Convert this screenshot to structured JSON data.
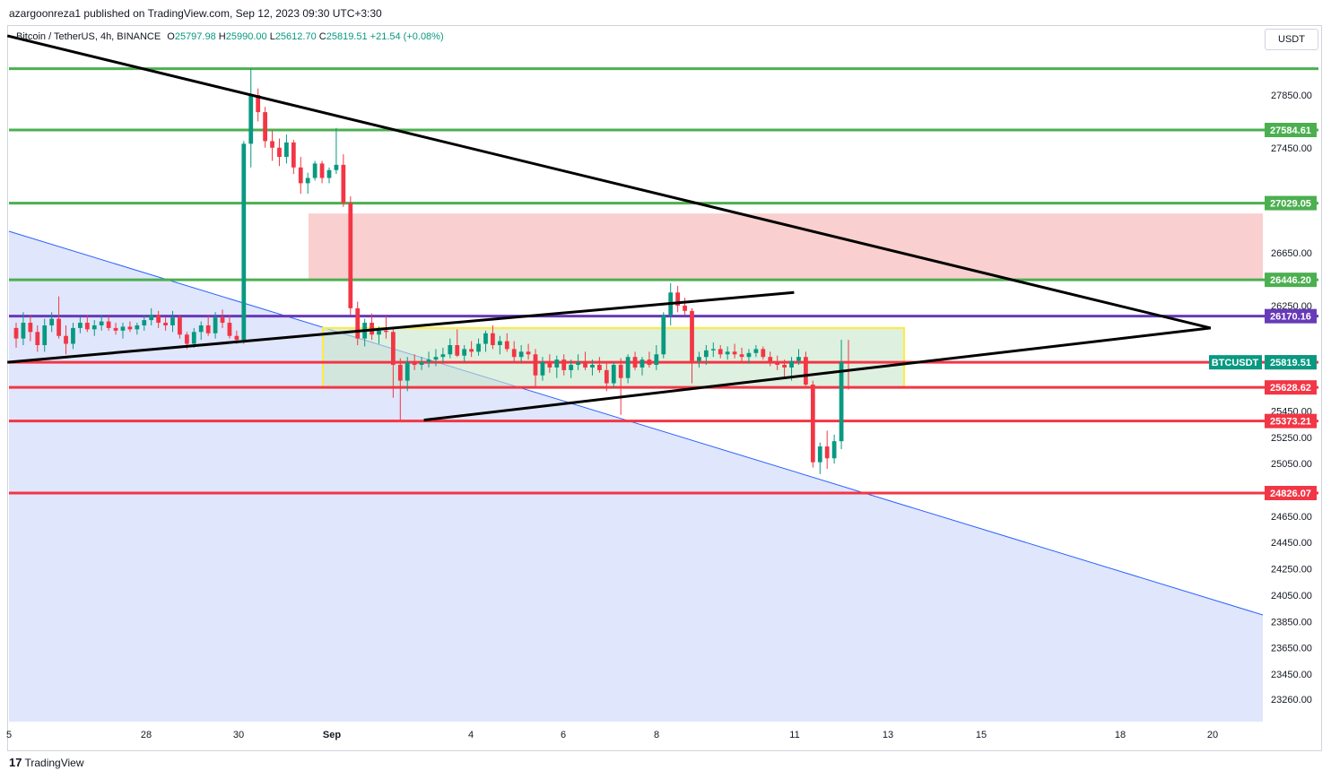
{
  "header": {
    "published": "azargoonreza1 published on TradingView.com, Sep 12, 2023 09:30 UTC+3:30"
  },
  "legend": {
    "symbol": "Bitcoin / TetherUS, 4h, BINANCE",
    "open_label": "O",
    "open": "25797.98",
    "high_label": "H",
    "high": "25990.00",
    "low_label": "L",
    "low": "25612.70",
    "close_label": "C",
    "close": "25819.51",
    "change": "+21.54 (+0.08%)"
  },
  "currency": "USDT",
  "brand": {
    "logo": "17",
    "name": "TradingView"
  },
  "colors": {
    "up": "#089981",
    "down": "#f23645",
    "support_line": "#f23645",
    "resistance_line": "#4caf50",
    "purple_line": "#673ab7",
    "zone_red": "#f8bbbb",
    "zone_green": "#c8e6c9",
    "zone_border": "#ffeb3b",
    "channel_fill": "#dde3fb",
    "channel_line": "#2962ff"
  },
  "chart_data": {
    "type": "candlestick",
    "symbol": "BTCUSDT",
    "timeframe": "4h",
    "y_axis": {
      "ylim": [
        23260,
        28250
      ],
      "ticks": [
        "27850.00",
        "27450.00",
        "26650.00",
        "26250.00",
        "25450.00",
        "25250.00",
        "25050.00",
        "24650.00",
        "24450.00",
        "24250.00",
        "24050.00",
        "23850.00",
        "23650.00",
        "23450.00",
        "23260.00"
      ]
    },
    "x_axis": {
      "ticks": [
        "5",
        "28",
        "30",
        "Sep",
        "4",
        "6",
        "8",
        "11",
        "13",
        "15",
        "18",
        "20"
      ]
    },
    "horizontal_levels": [
      {
        "price": 28050.0,
        "label": "",
        "color": "#4caf50"
      },
      {
        "price": 27584.61,
        "label": "27584.61",
        "color": "#4caf50"
      },
      {
        "price": 27029.05,
        "label": "27029.05",
        "color": "#4caf50"
      },
      {
        "price": 26446.2,
        "label": "26446.20",
        "color": "#4caf50"
      },
      {
        "price": 26170.16,
        "label": "26170.16",
        "color": "#673ab7"
      },
      {
        "price": 25819.58,
        "label": "25819.58",
        "color": "#f23645"
      },
      {
        "price": 25628.62,
        "label": "25628.62",
        "color": "#f23645"
      },
      {
        "price": 25373.21,
        "label": "25373.21",
        "color": "#f23645"
      },
      {
        "price": 24826.07,
        "label": "24826.07",
        "color": "#f23645"
      }
    ],
    "last_price": {
      "symbol_label": "BTCUSDT",
      "value": "25819.51"
    },
    "zones": [
      {
        "name": "supply-zone",
        "top": 26950,
        "bottom": 26450,
        "color": "#f8bbbb"
      },
      {
        "name": "range-box",
        "top": 26080,
        "bottom": 25630,
        "color": "#c8e6c9"
      }
    ],
    "candles": [
      [
        26080,
        26120,
        25930,
        26000
      ],
      [
        26000,
        26200,
        25950,
        26120
      ],
      [
        26120,
        26180,
        25980,
        26050
      ],
      [
        26050,
        26100,
        25900,
        25950
      ],
      [
        25950,
        26150,
        25900,
        26100
      ],
      [
        26100,
        26200,
        26050,
        26150
      ],
      [
        26150,
        26320,
        26000,
        26020
      ],
      [
        26020,
        26100,
        25880,
        25960
      ],
      [
        25960,
        26120,
        25920,
        26080
      ],
      [
        26080,
        26160,
        26040,
        26120
      ],
      [
        26120,
        26180,
        26050,
        26070
      ],
      [
        26070,
        26140,
        26020,
        26100
      ],
      [
        26100,
        26180,
        26060,
        26130
      ],
      [
        26130,
        26170,
        26060,
        26080
      ],
      [
        26080,
        26120,
        26030,
        26060
      ],
      [
        26060,
        26120,
        26000,
        26090
      ],
      [
        26090,
        26130,
        26050,
        26070
      ],
      [
        26070,
        26120,
        26030,
        26100
      ],
      [
        26100,
        26180,
        26060,
        26140
      ],
      [
        26140,
        26230,
        26100,
        26180
      ],
      [
        26180,
        26210,
        26080,
        26120
      ],
      [
        26120,
        26160,
        26060,
        26100
      ],
      [
        26100,
        26210,
        26050,
        26160
      ],
      [
        26160,
        26180,
        26000,
        26030
      ],
      [
        26030,
        26050,
        25920,
        25960
      ],
      [
        25960,
        26080,
        25930,
        26050
      ],
      [
        26050,
        26130,
        25990,
        26100
      ],
      [
        26100,
        26180,
        26020,
        26040
      ],
      [
        26040,
        26200,
        26000,
        26160
      ],
      [
        26160,
        26220,
        26080,
        26120
      ],
      [
        26120,
        26180,
        26000,
        26020
      ],
      [
        26020,
        26060,
        25960,
        25990
      ],
      [
        25990,
        27500,
        25960,
        27480
      ],
      [
        27480,
        28050,
        27300,
        27850
      ],
      [
        27850,
        27900,
        27650,
        27720
      ],
      [
        27720,
        27760,
        27450,
        27500
      ],
      [
        27500,
        27580,
        27350,
        27450
      ],
      [
        27450,
        27520,
        27310,
        27380
      ],
      [
        27380,
        27550,
        27330,
        27490
      ],
      [
        27490,
        27510,
        27250,
        27300
      ],
      [
        27300,
        27380,
        27100,
        27180
      ],
      [
        27180,
        27260,
        27100,
        27220
      ],
      [
        27220,
        27350,
        27200,
        27330
      ],
      [
        27330,
        27350,
        27180,
        27220
      ],
      [
        27220,
        27300,
        27180,
        27280
      ],
      [
        27280,
        27600,
        27250,
        27320
      ],
      [
        27320,
        27400,
        27000,
        27030
      ],
      [
        27030,
        27080,
        26180,
        26230
      ],
      [
        26230,
        26280,
        25950,
        26000
      ],
      [
        26000,
        26150,
        25940,
        26120
      ],
      [
        26120,
        26190,
        25990,
        26030
      ],
      [
        26030,
        26090,
        25960,
        26060
      ],
      [
        26060,
        26170,
        26000,
        26050
      ],
      [
        26050,
        26080,
        25550,
        25800
      ],
      [
        25800,
        25850,
        25380,
        25680
      ],
      [
        25680,
        25860,
        25600,
        25820
      ],
      [
        25820,
        25880,
        25760,
        25800
      ],
      [
        25800,
        25860,
        25760,
        25820
      ],
      [
        25820,
        25900,
        25780,
        25840
      ],
      [
        25840,
        25920,
        25790,
        25860
      ],
      [
        25860,
        25930,
        25820,
        25880
      ],
      [
        25880,
        26000,
        25850,
        25950
      ],
      [
        25950,
        26070,
        25860,
        25870
      ],
      [
        25870,
        25950,
        25820,
        25920
      ],
      [
        25920,
        25980,
        25860,
        25900
      ],
      [
        25900,
        26000,
        25870,
        25960
      ],
      [
        25960,
        26060,
        25900,
        26040
      ],
      [
        26040,
        26100,
        25920,
        25950
      ],
      [
        25950,
        26020,
        25880,
        25980
      ],
      [
        25980,
        26040,
        25900,
        25920
      ],
      [
        25920,
        25980,
        25820,
        25860
      ],
      [
        25860,
        25950,
        25820,
        25900
      ],
      [
        25900,
        25960,
        25840,
        25880
      ],
      [
        25880,
        25920,
        25620,
        25720
      ],
      [
        25720,
        25860,
        25680,
        25820
      ],
      [
        25820,
        25880,
        25740,
        25780
      ],
      [
        25780,
        25870,
        25700,
        25840
      ],
      [
        25840,
        25880,
        25720,
        25760
      ],
      [
        25760,
        25840,
        25700,
        25800
      ],
      [
        25800,
        25880,
        25760,
        25820
      ],
      [
        25820,
        25900,
        25760,
        25780
      ],
      [
        25780,
        25840,
        25720,
        25800
      ],
      [
        25800,
        25860,
        25740,
        25760
      ],
      [
        25760,
        25820,
        25600,
        25660
      ],
      [
        25660,
        25820,
        25620,
        25800
      ],
      [
        25800,
        25850,
        25420,
        25700
      ],
      [
        25700,
        25880,
        25660,
        25860
      ],
      [
        25860,
        25900,
        25760,
        25780
      ],
      [
        25780,
        25860,
        25720,
        25840
      ],
      [
        25840,
        25900,
        25780,
        25800
      ],
      [
        25800,
        25950,
        25760,
        25880
      ],
      [
        25880,
        26200,
        25850,
        26180
      ],
      [
        26180,
        26420,
        26100,
        26350
      ],
      [
        26350,
        26400,
        26200,
        26250
      ],
      [
        26250,
        26310,
        26180,
        26210
      ],
      [
        26210,
        26230,
        25660,
        25830
      ],
      [
        25830,
        25900,
        25780,
        25860
      ],
      [
        25860,
        25950,
        25800,
        25910
      ],
      [
        25910,
        25970,
        25860,
        25920
      ],
      [
        25920,
        25950,
        25850,
        25880
      ],
      [
        25880,
        25940,
        25840,
        25900
      ],
      [
        25900,
        25960,
        25850,
        25880
      ],
      [
        25880,
        25930,
        25830,
        25860
      ],
      [
        25860,
        25920,
        25810,
        25890
      ],
      [
        25890,
        25950,
        25860,
        25920
      ],
      [
        25920,
        25940,
        25840,
        25860
      ],
      [
        25860,
        25900,
        25790,
        25820
      ],
      [
        25820,
        25870,
        25760,
        25800
      ],
      [
        25800,
        25840,
        25700,
        25780
      ],
      [
        25780,
        25860,
        25680,
        25830
      ],
      [
        25830,
        25920,
        25800,
        25860
      ],
      [
        25860,
        25900,
        25640,
        25650
      ],
      [
        25650,
        25680,
        25020,
        25060
      ],
      [
        25060,
        25210,
        24970,
        25180
      ],
      [
        25180,
        25300,
        25010,
        25090
      ],
      [
        25090,
        25270,
        25050,
        25220
      ],
      [
        25220,
        25990,
        25160,
        25820
      ],
      [
        25820,
        25990,
        25612,
        25819
      ]
    ],
    "trendlines": [
      {
        "name": "upper-triangle",
        "from": [
          "Aug 25",
          28300
        ],
        "to": [
          "Sep 19",
          26080
        ]
      },
      {
        "name": "lower-triangle-left",
        "from": [
          "Aug 25",
          25820
        ],
        "to": [
          "Sep 10",
          26350
        ]
      },
      {
        "name": "lower-triangle-right",
        "from": [
          "Sep 2",
          25380
        ],
        "to": [
          "Sep 19",
          26080
        ]
      }
    ]
  }
}
